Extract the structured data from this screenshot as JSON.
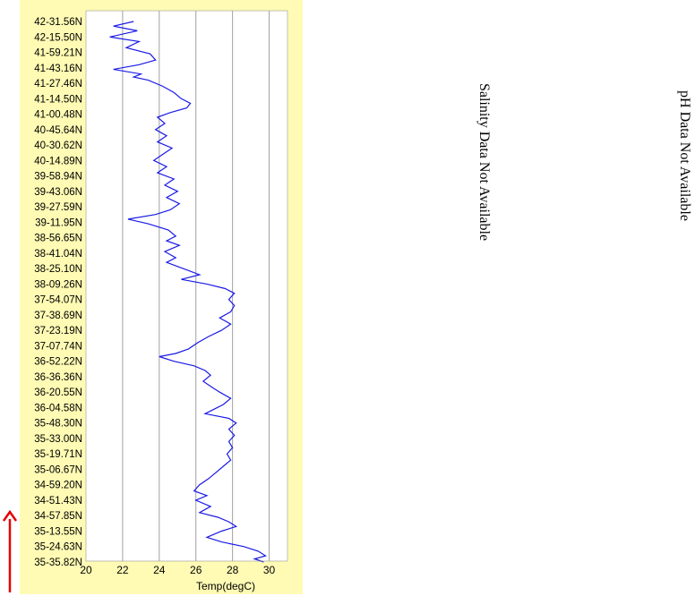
{
  "chart_data": {
    "type": "line",
    "orientation": "horizontal-profile",
    "xlabel": "Temp(degC)",
    "xlim": [
      20,
      31
    ],
    "x_ticks": [
      20,
      22,
      24,
      26,
      28,
      30
    ],
    "grid": "vertical",
    "background": "#fffbb4",
    "line_color": "#1a1ae6",
    "y_ticks": [
      "42-31.56N",
      "42-15.50N",
      "41-59.21N",
      "41-43.16N",
      "41-27.46N",
      "41-14.50N",
      "41-00.48N",
      "40-45.64N",
      "40-30.62N",
      "40-14.89N",
      "39-58.94N",
      "39-43.06N",
      "39-27.59N",
      "39-11.95N",
      "38-56.65N",
      "38-41.04N",
      "38-25.10N",
      "38-09.26N",
      "37-54.07N",
      "37-38.69N",
      "37-23.19N",
      "37-07.74N",
      "36-52.22N",
      "36-36.36N",
      "36-20.55N",
      "36-04.58N",
      "35-48.30N",
      "35-33.00N",
      "35-19.71N",
      "35-06.67N",
      "34-59.20N",
      "34-51.43N",
      "34-57.85N",
      "35-13.55N",
      "35-24.63N",
      "35-35.82N"
    ],
    "series": [
      {
        "values": [
          [
            22.6,
            0
          ],
          [
            21.5,
            0.3
          ],
          [
            22.8,
            0.6
          ],
          [
            21.3,
            1.0
          ],
          [
            22.9,
            1.3
          ],
          [
            22.2,
            1.7
          ],
          [
            23.5,
            2.1
          ],
          [
            23.8,
            2.5
          ],
          [
            22.9,
            2.8
          ],
          [
            21.5,
            3.1
          ],
          [
            23.0,
            3.4
          ],
          [
            22.6,
            3.6
          ],
          [
            23.4,
            3.8
          ],
          [
            24.2,
            4.2
          ],
          [
            24.8,
            4.6
          ],
          [
            25.2,
            5.0
          ],
          [
            25.7,
            5.3
          ],
          [
            25.5,
            5.6
          ],
          [
            24.6,
            5.9
          ],
          [
            23.9,
            6.2
          ],
          [
            24.3,
            6.6
          ],
          [
            23.8,
            7.0
          ],
          [
            24.4,
            7.4
          ],
          [
            23.9,
            7.8
          ],
          [
            24.7,
            8.2
          ],
          [
            24.2,
            8.6
          ],
          [
            23.7,
            9.0
          ],
          [
            24.4,
            9.4
          ],
          [
            23.9,
            9.8
          ],
          [
            24.8,
            10.2
          ],
          [
            24.3,
            10.6
          ],
          [
            25.0,
            11.0
          ],
          [
            24.4,
            11.4
          ],
          [
            25.1,
            11.8
          ],
          [
            24.6,
            12.2
          ],
          [
            23.8,
            12.5
          ],
          [
            22.3,
            12.8
          ],
          [
            23.4,
            13.1
          ],
          [
            24.5,
            13.5
          ],
          [
            24.9,
            13.9
          ],
          [
            24.4,
            14.2
          ],
          [
            25.1,
            14.5
          ],
          [
            24.3,
            14.9
          ],
          [
            24.9,
            15.3
          ],
          [
            24.4,
            15.6
          ],
          [
            25.3,
            16.0
          ],
          [
            26.2,
            16.4
          ],
          [
            25.2,
            16.7
          ],
          [
            26.6,
            17.0
          ],
          [
            27.6,
            17.3
          ],
          [
            28.1,
            17.6
          ],
          [
            27.8,
            18.0
          ],
          [
            28.1,
            18.4
          ],
          [
            27.9,
            18.8
          ],
          [
            27.3,
            19.2
          ],
          [
            27.9,
            19.6
          ],
          [
            27.4,
            20.0
          ],
          [
            26.7,
            20.4
          ],
          [
            26.1,
            20.8
          ],
          [
            25.6,
            21.2
          ],
          [
            24.9,
            21.5
          ],
          [
            24.0,
            21.7
          ],
          [
            24.8,
            22.0
          ],
          [
            25.9,
            22.3
          ],
          [
            26.5,
            22.6
          ],
          [
            26.8,
            22.9
          ],
          [
            26.4,
            23.3
          ],
          [
            26.9,
            23.7
          ],
          [
            27.3,
            24.0
          ],
          [
            27.9,
            24.4
          ],
          [
            27.5,
            24.8
          ],
          [
            27.0,
            25.1
          ],
          [
            26.5,
            25.4
          ],
          [
            27.8,
            25.7
          ],
          [
            28.2,
            26.0
          ],
          [
            27.8,
            26.4
          ],
          [
            28.1,
            26.8
          ],
          [
            27.8,
            27.2
          ],
          [
            28.0,
            27.6
          ],
          [
            27.7,
            28.0
          ],
          [
            27.9,
            28.4
          ],
          [
            27.5,
            28.8
          ],
          [
            27.1,
            29.2
          ],
          [
            26.7,
            29.6
          ],
          [
            26.2,
            30.0
          ],
          [
            25.9,
            30.4
          ],
          [
            26.6,
            30.7
          ],
          [
            26.0,
            31.0
          ],
          [
            26.8,
            31.4
          ],
          [
            26.2,
            31.8
          ],
          [
            27.2,
            32.1
          ],
          [
            27.8,
            32.4
          ],
          [
            28.2,
            32.7
          ],
          [
            27.4,
            33.0
          ],
          [
            26.6,
            33.4
          ],
          [
            27.4,
            33.7
          ],
          [
            28.6,
            34.0
          ],
          [
            29.4,
            34.3
          ],
          [
            29.8,
            34.6
          ],
          [
            29.2,
            34.8
          ],
          [
            29.7,
            35.0
          ]
        ]
      }
    ]
  },
  "notes": {
    "salinity": "Salinity Data Not Available",
    "ph": "pH Data Not Available"
  },
  "arrow_color": "#e60000"
}
